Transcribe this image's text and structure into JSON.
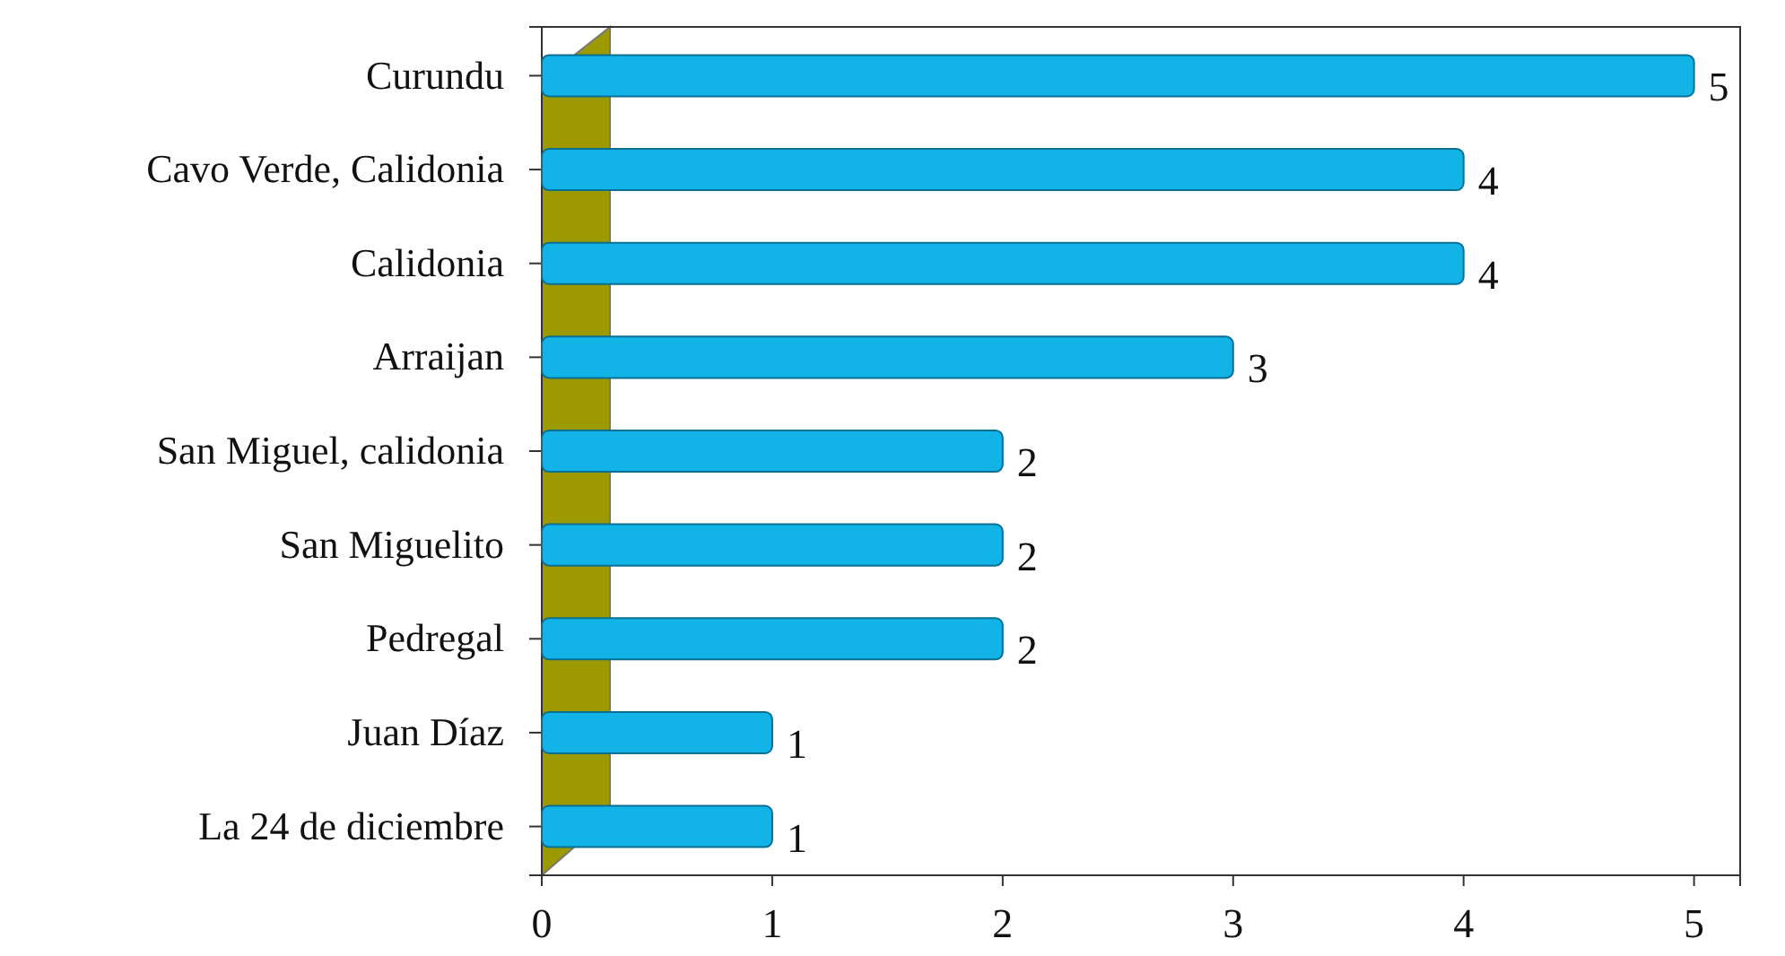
{
  "chart_data": {
    "type": "bar",
    "orientation": "horizontal",
    "categories": [
      "Curundu",
      "Cavo Verde, Calidonia",
      "Calidonia",
      "Arraijan",
      "San Miguel, calidonia",
      "San Miguelito",
      "Pedregal",
      "Juan Díaz",
      "La 24 de diciembre"
    ],
    "values": [
      5,
      4,
      4,
      3,
      2,
      2,
      2,
      1,
      1
    ],
    "color": "#12b4e8",
    "xlim": [
      0,
      5.2
    ],
    "xticks": [
      0,
      1,
      2,
      3,
      4,
      5
    ],
    "data_labels": true
  }
}
